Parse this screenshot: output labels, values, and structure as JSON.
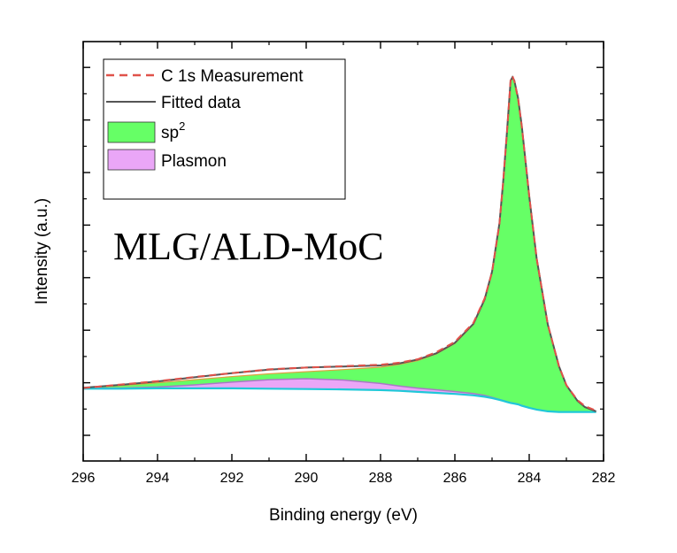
{
  "chart_data": {
    "type": "area",
    "title": "",
    "xlabel": "Binding energy (eV)",
    "ylabel": "Intensity (a.u.)",
    "xlim": [
      296,
      282
    ],
    "ylim": [
      0,
      1.05
    ],
    "x_ticks": [
      296,
      294,
      292,
      290,
      288,
      286,
      284,
      282
    ],
    "y_tick_labels_shown": false,
    "annotation": "MLG/ALD-MoC",
    "legend_position": "top-left",
    "legend": [
      {
        "label": "C 1s Measurement",
        "style": "dashed-line",
        "color": "#e0524a"
      },
      {
        "label": "Fitted data",
        "style": "line",
        "color": "#555555"
      },
      {
        "label": "sp",
        "superscript": "2",
        "style": "fill",
        "color": "#66ff66"
      },
      {
        "label": "Plasmon",
        "style": "fill",
        "color": "#eaa6f7"
      }
    ],
    "colors": {
      "measurement": "#e0524a",
      "fit": "#555555",
      "sp2_fill": "#66ff66",
      "plasmon_fill": "#eaa6f7",
      "plasmon_line": "#a879c4",
      "background": "#1fc8d8",
      "shoulder": "#e0a040"
    },
    "x": [
      296,
      295,
      294,
      293,
      292,
      291,
      290,
      289,
      288,
      287.5,
      287,
      286.5,
      286,
      285.5,
      285.2,
      285,
      284.8,
      284.7,
      284.6,
      284.5,
      284.45,
      284.4,
      284.3,
      284.2,
      284,
      283.8,
      283.5,
      283.2,
      283,
      282.7,
      282.5,
      282.2
    ],
    "series": [
      {
        "name": "Background",
        "values": [
          0.045,
          0.045,
          0.046,
          0.046,
          0.046,
          0.045,
          0.044,
          0.043,
          0.041,
          0.039,
          0.036,
          0.033,
          0.03,
          0.026,
          0.022,
          0.018,
          0.013,
          0.01,
          0.007,
          0.004,
          0.003,
          0.002,
          0.0,
          -0.004,
          -0.01,
          -0.015,
          -0.02,
          -0.022,
          -0.022,
          -0.022,
          -0.022,
          -0.022
        ]
      },
      {
        "name": "sp2",
        "values": [
          0.048,
          0.054,
          0.062,
          0.071,
          0.08,
          0.088,
          0.094,
          0.1,
          0.107,
          0.115,
          0.126,
          0.145,
          0.175,
          0.23,
          0.3,
          0.38,
          0.52,
          0.64,
          0.78,
          0.93,
          0.94,
          0.93,
          0.88,
          0.8,
          0.6,
          0.42,
          0.23,
          0.11,
          0.055,
          0.01,
          -0.008,
          -0.02
        ]
      },
      {
        "name": "Plasmon",
        "values": [
          0.046,
          0.047,
          0.05,
          0.056,
          0.064,
          0.071,
          0.074,
          0.07,
          0.06,
          0.053,
          0.047,
          0.042,
          0.037,
          0.031,
          0.026,
          0.02,
          0.014,
          0.011,
          0.008,
          0.005,
          0.004,
          0.003,
          0.001,
          -0.003,
          -0.01,
          -0.015,
          -0.02,
          -0.022,
          -0.022,
          -0.022,
          -0.022,
          -0.022
        ]
      },
      {
        "name": "Fitted data",
        "values": [
          0.048,
          0.056,
          0.066,
          0.078,
          0.09,
          0.1,
          0.106,
          0.109,
          0.112,
          0.118,
          0.129,
          0.147,
          0.177,
          0.232,
          0.302,
          0.382,
          0.522,
          0.642,
          0.782,
          0.932,
          0.942,
          0.932,
          0.882,
          0.802,
          0.6,
          0.42,
          0.23,
          0.11,
          0.055,
          0.01,
          -0.008,
          -0.02
        ]
      },
      {
        "name": "C 1s Measurement",
        "values": [
          0.047,
          0.057,
          0.067,
          0.079,
          0.09,
          0.101,
          0.106,
          0.11,
          0.114,
          0.12,
          0.13,
          0.15,
          0.18,
          0.235,
          0.305,
          0.38,
          0.52,
          0.64,
          0.78,
          0.935,
          0.945,
          0.93,
          0.88,
          0.8,
          0.6,
          0.42,
          0.23,
          0.11,
          0.055,
          0.012,
          -0.005,
          -0.018
        ]
      }
    ]
  }
}
